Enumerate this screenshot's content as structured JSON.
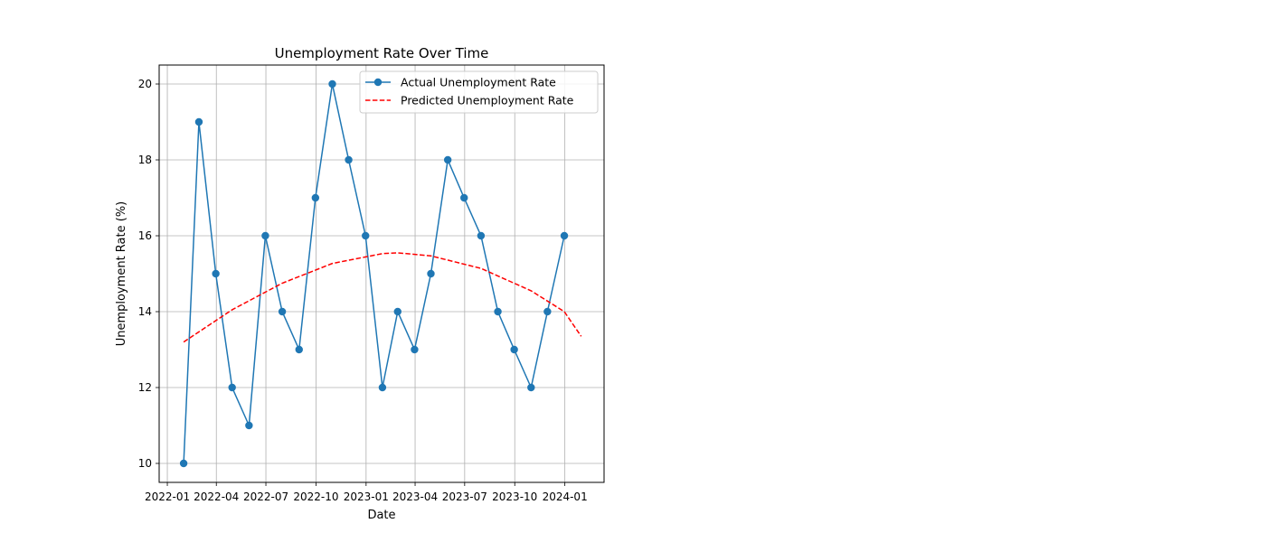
{
  "chart_data": {
    "type": "line",
    "title": "Unemployment Rate Over Time",
    "xlabel": "Date",
    "ylabel": "Unemployment Rate (%)",
    "grid": true,
    "legend_position": "top-right",
    "x_ticks": [
      "2022-01",
      "2022-04",
      "2022-07",
      "2022-10",
      "2023-01",
      "2023-04",
      "2023-07",
      "2023-10",
      "2024-01"
    ],
    "y_ticks": [
      10,
      12,
      14,
      16,
      18,
      20
    ],
    "ylim": [
      9.5,
      20.5
    ],
    "xlim": [
      "2021-12-17",
      "2024-03-13"
    ],
    "series": [
      {
        "name": "Actual Unemployment Rate",
        "color": "#1f77b4",
        "style": "solid-with-markers",
        "x": [
          "2022-01-31",
          "2022-02-28",
          "2022-03-31",
          "2022-04-30",
          "2022-05-31",
          "2022-06-30",
          "2022-07-31",
          "2022-08-31",
          "2022-09-30",
          "2022-10-31",
          "2022-11-30",
          "2022-12-31",
          "2023-01-31",
          "2023-02-28",
          "2023-03-31",
          "2023-04-30",
          "2023-05-31",
          "2023-06-30",
          "2023-07-31",
          "2023-08-31",
          "2023-09-30",
          "2023-10-31",
          "2023-11-30",
          "2023-12-31"
        ],
        "values": [
          10,
          19,
          15,
          12,
          11,
          16,
          14,
          13,
          17,
          20,
          18,
          16,
          12,
          14,
          13,
          15,
          18,
          17,
          16,
          14,
          13,
          12,
          14,
          16
        ]
      },
      {
        "name": "Predicted Unemployment Rate",
        "color": "#ff0000",
        "style": "dashed",
        "x": [
          "2022-01-31",
          "2022-04-30",
          "2022-07-31",
          "2022-10-31",
          "2023-01-31",
          "2023-02-28",
          "2023-04-30",
          "2023-07-31",
          "2023-10-31",
          "2023-12-31",
          "2024-01-31"
        ],
        "values": [
          13.2,
          14.05,
          14.75,
          15.27,
          15.53,
          15.55,
          15.47,
          15.14,
          14.55,
          14.0,
          13.35
        ]
      }
    ]
  }
}
